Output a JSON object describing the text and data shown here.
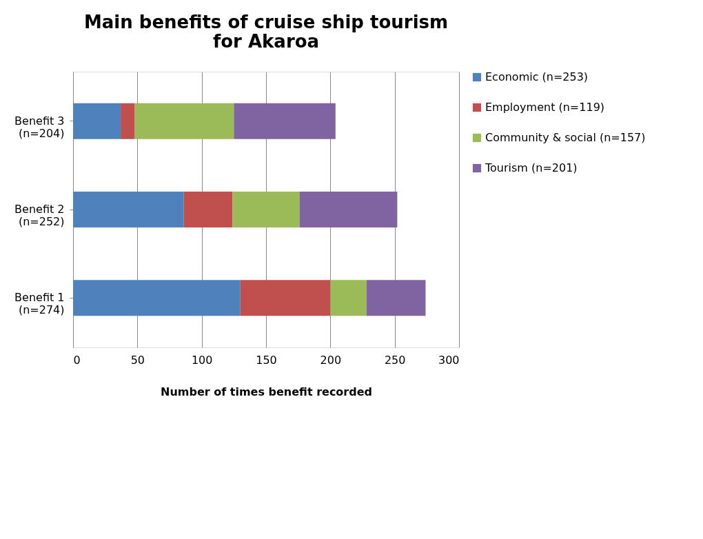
{
  "chart_data": {
    "type": "bar",
    "orientation": "horizontal",
    "stacked": true,
    "title": "Main benefits of cruise ship tourism\nfor Akaroa",
    "xlabel": "Number of times benefit recorded",
    "categories": [
      "Benefit 3\n(n=204)",
      "Benefit 2\n(n=252)",
      "Benefit 1\n(n=274)"
    ],
    "series": [
      {
        "name": "Economic (n=253)",
        "color": "#4f81bd",
        "values": [
          37,
          86,
          130
        ]
      },
      {
        "name": "Employment (n=119)",
        "color": "#c0504d",
        "values": [
          11,
          38,
          70
        ]
      },
      {
        "name": "Community & social (n=157)",
        "color": "#9bbb59",
        "values": [
          77,
          52,
          28
        ]
      },
      {
        "name": "Tourism (n=201)",
        "color": "#8064a2",
        "values": [
          79,
          76,
          46
        ]
      }
    ],
    "xlim": [
      0,
      300
    ],
    "xticks": [
      0,
      50,
      100,
      150,
      200,
      250,
      300
    ],
    "grid": "x",
    "legend": "right"
  }
}
